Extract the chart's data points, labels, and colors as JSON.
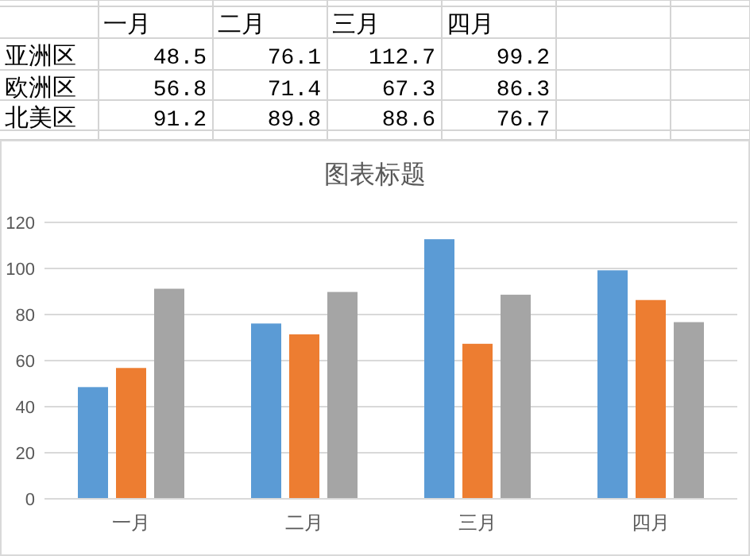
{
  "chart_data": {
    "type": "bar",
    "title": "图表标题",
    "categories": [
      "一月",
      "二月",
      "三月",
      "四月"
    ],
    "series": [
      {
        "color": "#5b9bd5",
        "values": [
          48.5,
          76.1,
          112.7,
          99.2
        ]
      },
      {
        "color": "#ed7d31",
        "values": [
          56.8,
          71.4,
          67.3,
          86.3
        ]
      },
      {
        "color": "#a5a5a5",
        "values": [
          91.2,
          89.8,
          88.6,
          76.7
        ]
      }
    ],
    "annotations": [
      "一月",
      "二月",
      "三月",
      "四月",
      "亚洲区",
      "48.5",
      "76.1",
      "112.7",
      "99.2",
      "欧洲区",
      "56.8",
      "71.4",
      "67.3",
      "86.3",
      "北美区",
      "91.2",
      "89.8",
      "88.6",
      "76.7"
    ],
    "ylim": [
      0,
      120
    ],
    "yticks": [
      0,
      20,
      40,
      60,
      80,
      100,
      120
    ],
    "grid": "y",
    "legend": false
  }
}
